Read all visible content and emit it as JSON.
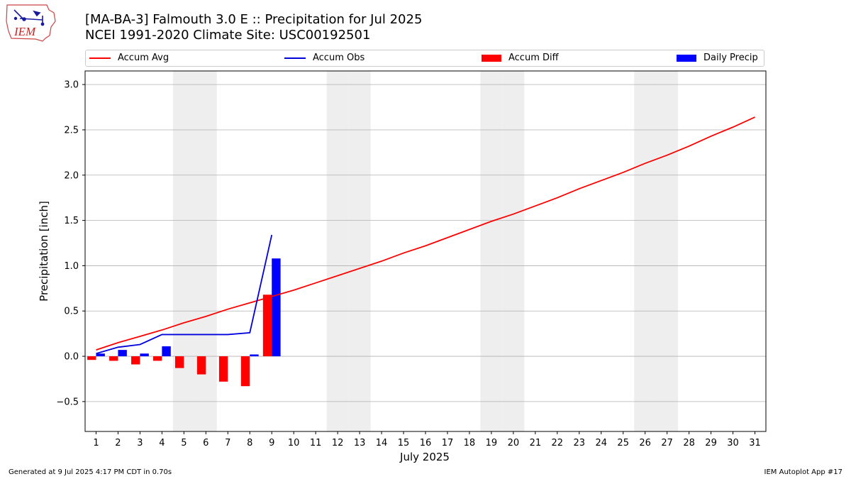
{
  "header": {
    "title_line1": "[MA-BA-3] Falmouth 3.0 E :: Precipitation for Jul 2025",
    "title_line2": "NCEI 1991-2020 Climate Site: USC00192501",
    "logo_text": "IEM"
  },
  "footer": {
    "generated": "Generated at 9 Jul 2025 4:17 PM CDT in 0.70s",
    "app": "IEM Autoplot App #17"
  },
  "colors": {
    "accum_avg": "#ff0000",
    "accum_obs": "#0000dd",
    "accum_diff": "#ff0000",
    "daily_precip": "#0000ff",
    "weekend_band": "#eeeeee",
    "grid": "#b0b0b0"
  },
  "chart_data": {
    "type": "bar",
    "xlabel": "July 2025",
    "ylabel": "Precipitation [inch]",
    "xlim": [
      0.5,
      31.5
    ],
    "ylim": [
      -0.83,
      3.15
    ],
    "yticks": [
      -0.5,
      0.0,
      0.5,
      1.0,
      1.5,
      2.0,
      2.5,
      3.0
    ],
    "ytick_labels": [
      "−0.5",
      "0.0",
      "0.5",
      "1.0",
      "1.5",
      "2.0",
      "2.5",
      "3.0"
    ],
    "days": [
      1,
      2,
      3,
      4,
      5,
      6,
      7,
      8,
      9,
      10,
      11,
      12,
      13,
      14,
      15,
      16,
      17,
      18,
      19,
      20,
      21,
      22,
      23,
      24,
      25,
      26,
      27,
      28,
      29,
      30,
      31
    ],
    "weekend_days": [
      5,
      6,
      12,
      13,
      19,
      20,
      26,
      27
    ],
    "grid": "horizontal",
    "legend_position": "top",
    "series": [
      {
        "name": "Accum Avg",
        "kind": "line",
        "x": [
          1,
          2,
          3,
          4,
          5,
          6,
          7,
          8,
          9,
          10,
          11,
          12,
          13,
          14,
          15,
          16,
          17,
          18,
          19,
          20,
          21,
          22,
          23,
          24,
          25,
          26,
          27,
          28,
          29,
          30,
          31
        ],
        "values": [
          0.07,
          0.15,
          0.22,
          0.29,
          0.37,
          0.44,
          0.52,
          0.59,
          0.66,
          0.73,
          0.81,
          0.89,
          0.97,
          1.05,
          1.14,
          1.22,
          1.31,
          1.4,
          1.49,
          1.57,
          1.66,
          1.75,
          1.85,
          1.94,
          2.03,
          2.13,
          2.22,
          2.32,
          2.43,
          2.53,
          2.64
        ]
      },
      {
        "name": "Accum Obs",
        "kind": "line",
        "x": [
          1,
          2,
          3,
          4,
          5,
          6,
          7,
          8,
          9
        ],
        "values": [
          0.03,
          0.1,
          0.13,
          0.24,
          0.24,
          0.24,
          0.24,
          0.26,
          1.34
        ]
      },
      {
        "name": "Accum Diff",
        "kind": "bar",
        "x": [
          1,
          2,
          3,
          4,
          5,
          6,
          7,
          8,
          9
        ],
        "values": [
          -0.04,
          -0.05,
          -0.09,
          -0.05,
          -0.13,
          -0.2,
          -0.28,
          -0.33,
          0.68
        ]
      },
      {
        "name": "Daily Precip",
        "kind": "bar",
        "x": [
          1,
          2,
          3,
          4,
          5,
          6,
          7,
          8,
          9
        ],
        "values": [
          0.03,
          0.07,
          0.03,
          0.11,
          0.0,
          0.0,
          0.0,
          0.02,
          1.08
        ]
      }
    ]
  }
}
